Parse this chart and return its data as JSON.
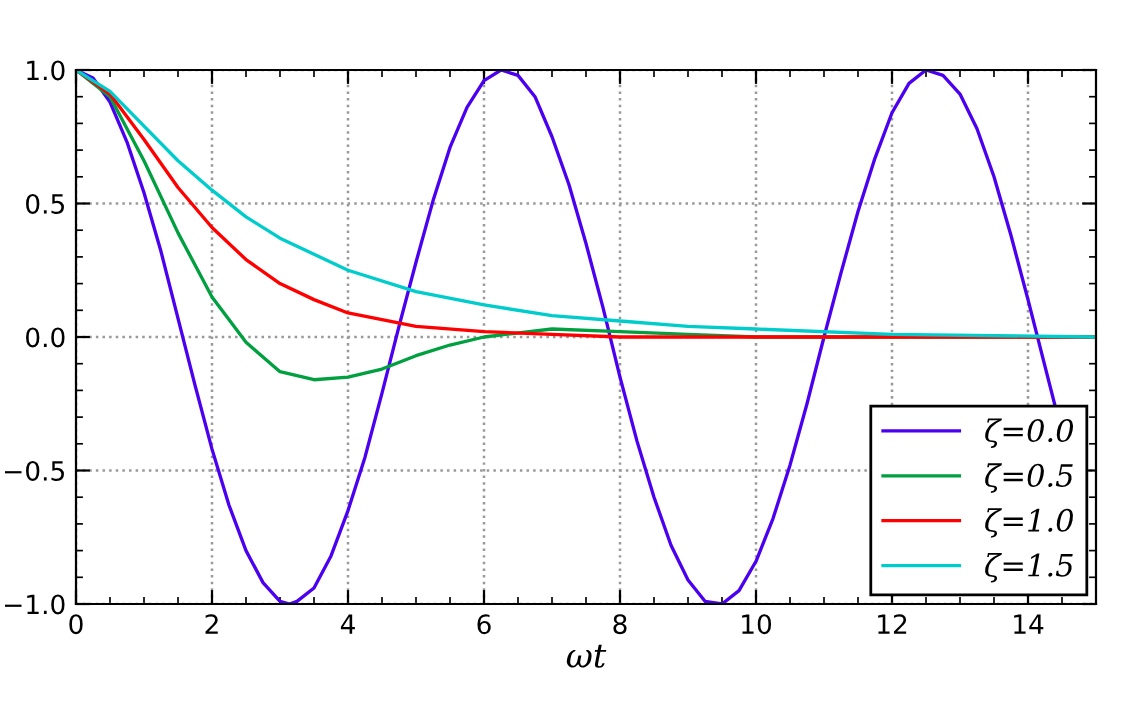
{
  "chart_data": {
    "type": "line",
    "xlabel": "ωt",
    "xlim": [
      0,
      15
    ],
    "xticks": [
      0,
      2,
      4,
      6,
      8,
      10,
      12,
      14
    ],
    "ylim": [
      -1.0,
      1.0
    ],
    "yticks": [
      {
        "value": -1.0,
        "label": "−1.0"
      },
      {
        "value": -0.5,
        "label": "−0.5"
      },
      {
        "value": 0.0,
        "label": "0.0"
      },
      {
        "value": 0.5,
        "label": "0.5"
      },
      {
        "value": 1.0,
        "label": "1.0"
      }
    ],
    "grid": true,
    "legend": "bottom right",
    "line_style": "solid",
    "marker": "none",
    "series": [
      {
        "name": "ζ=0.0",
        "color": "#4b00f0",
        "x": [
          0,
          0.25,
          0.5,
          0.75,
          1,
          1.25,
          1.5,
          1.75,
          2,
          2.25,
          2.5,
          2.75,
          3,
          3.14,
          3.25,
          3.5,
          3.75,
          4,
          4.25,
          4.5,
          4.75,
          5,
          5.25,
          5.5,
          5.75,
          6,
          6.25,
          6.5,
          6.75,
          7,
          7.25,
          7.5,
          7.75,
          8,
          8.25,
          8.5,
          8.75,
          9,
          9.25,
          9.5,
          9.75,
          10,
          10.25,
          10.5,
          10.75,
          11,
          11.25,
          11.5,
          11.75,
          12,
          12.25,
          12.5,
          12.75,
          13,
          13.25,
          13.5,
          13.75,
          14,
          14.25,
          14.4
        ],
        "values": [
          1.0,
          0.97,
          0.88,
          0.73,
          0.54,
          0.32,
          0.07,
          -0.18,
          -0.42,
          -0.63,
          -0.8,
          -0.92,
          -0.99,
          -1.0,
          -0.99,
          -0.94,
          -0.82,
          -0.65,
          -0.45,
          -0.21,
          0.04,
          0.28,
          0.51,
          0.71,
          0.86,
          0.96,
          1.0,
          0.98,
          0.9,
          0.75,
          0.57,
          0.35,
          0.11,
          -0.15,
          -0.39,
          -0.6,
          -0.78,
          -0.91,
          -0.99,
          -1.0,
          -0.95,
          -0.84,
          -0.68,
          -0.48,
          -0.25,
          0.0,
          0.24,
          0.47,
          0.67,
          0.84,
          0.95,
          1.0,
          0.98,
          0.91,
          0.78,
          0.6,
          0.38,
          0.14,
          -0.11,
          -0.26
        ]
      },
      {
        "name": "ζ=0.5",
        "color": "#00a040",
        "x": [
          0,
          0.5,
          1,
          1.5,
          2,
          2.5,
          3,
          3.5,
          4,
          4.5,
          5,
          5.5,
          6,
          7,
          8,
          9,
          10,
          12,
          15
        ],
        "values": [
          1.0,
          0.9,
          0.66,
          0.39,
          0.15,
          -0.02,
          -0.13,
          -0.16,
          -0.15,
          -0.12,
          -0.07,
          -0.03,
          0.0,
          0.03,
          0.02,
          0.01,
          0.0,
          0.0,
          0.0
        ]
      },
      {
        "name": "ζ=1.0",
        "color": "#ff0000",
        "x": [
          0,
          0.5,
          1,
          1.5,
          2,
          2.5,
          3,
          3.5,
          4,
          5,
          6,
          7,
          8,
          10,
          15
        ],
        "values": [
          1.0,
          0.91,
          0.74,
          0.56,
          0.41,
          0.29,
          0.2,
          0.14,
          0.09,
          0.04,
          0.02,
          0.01,
          0.0,
          0.0,
          0.0
        ]
      },
      {
        "name": "ζ=1.5",
        "color": "#00cccc",
        "x": [
          0,
          0.5,
          1,
          1.5,
          2,
          2.5,
          3,
          3.5,
          4,
          5,
          6,
          7,
          8,
          9,
          10,
          12,
          15
        ],
        "values": [
          1.0,
          0.92,
          0.79,
          0.66,
          0.55,
          0.45,
          0.37,
          0.31,
          0.25,
          0.17,
          0.12,
          0.08,
          0.06,
          0.04,
          0.03,
          0.01,
          0.0
        ]
      }
    ]
  }
}
